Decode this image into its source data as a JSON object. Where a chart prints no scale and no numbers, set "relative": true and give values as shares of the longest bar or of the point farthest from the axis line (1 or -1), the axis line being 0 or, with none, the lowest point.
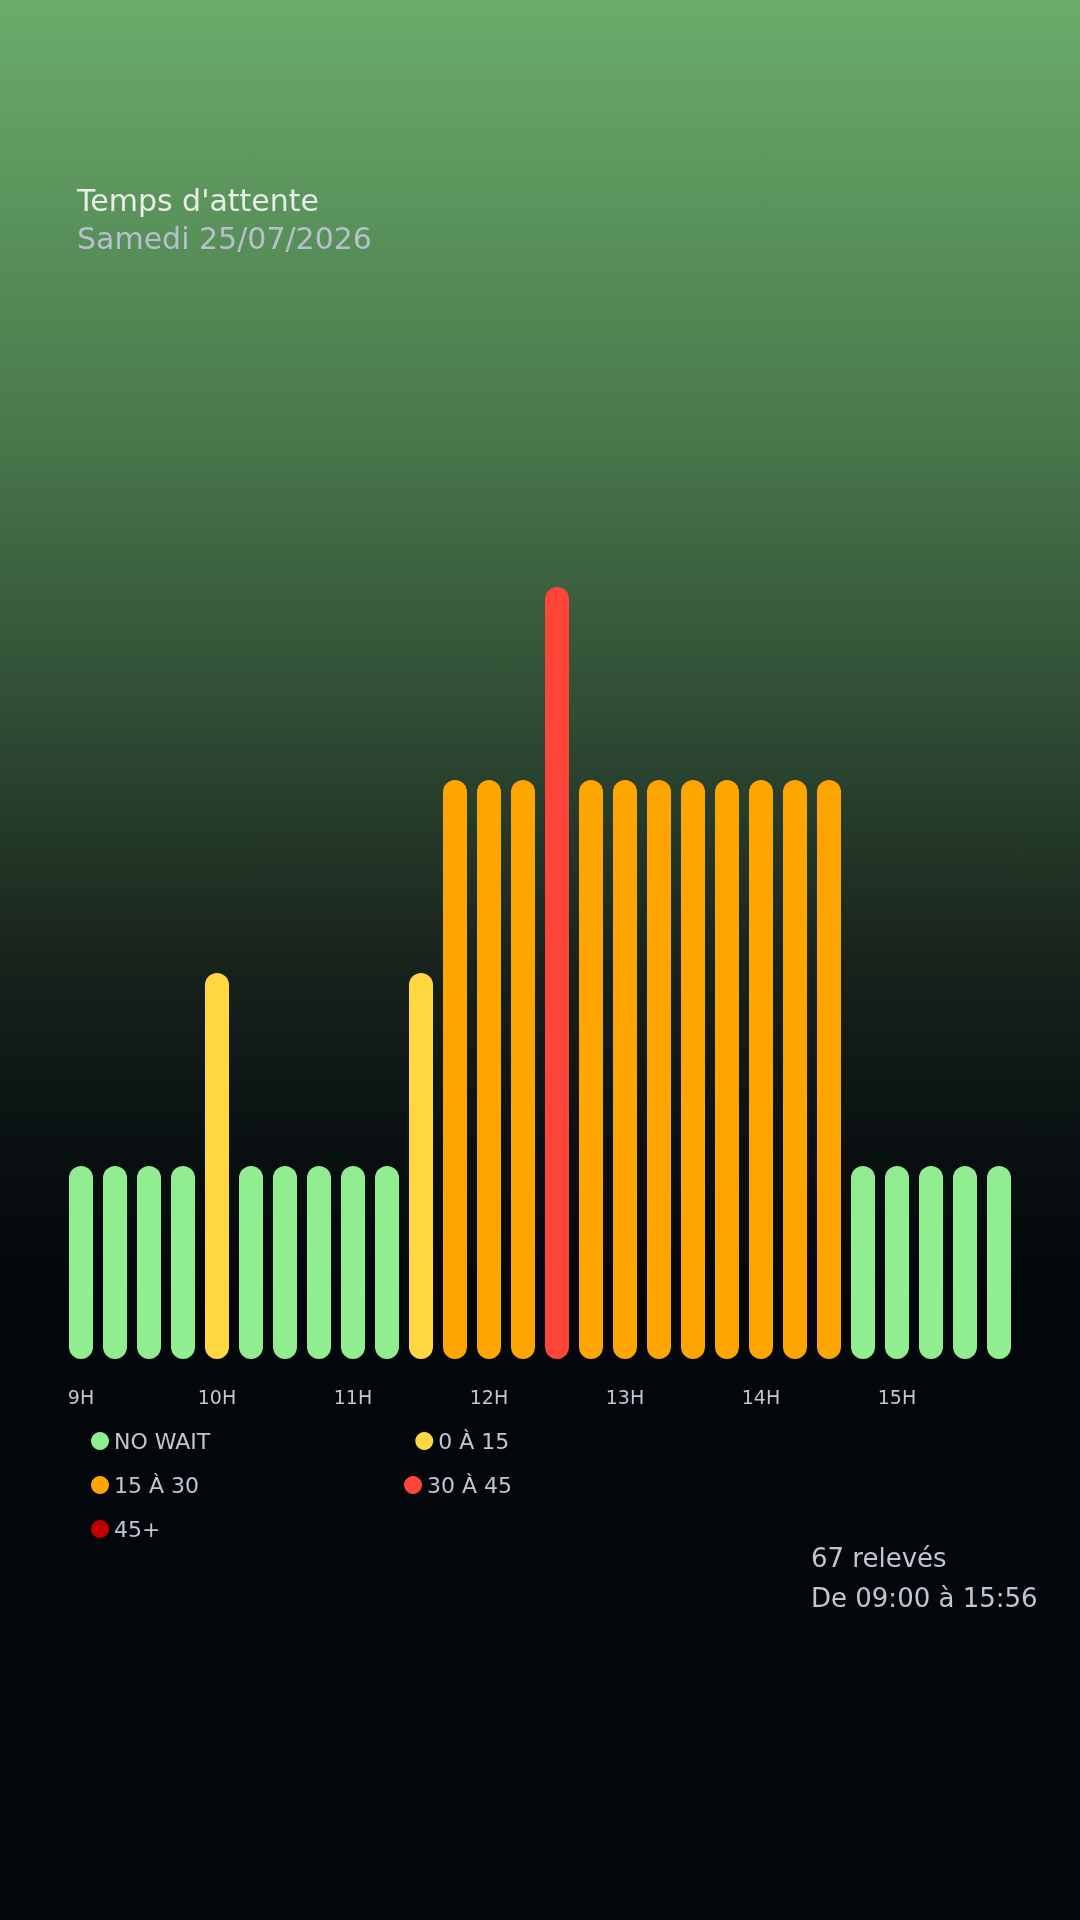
{
  "chart_data": {
    "type": "bar",
    "title": "Temps d'attente",
    "subtitle": "Samedi 25/07/2026",
    "relative": true,
    "stacked": true,
    "legend": "bottom",
    "grid": false,
    "categories": [
      "9H",
      null,
      null,
      null,
      "10H",
      null,
      null,
      null,
      "11H",
      null,
      null,
      null,
      "12H",
      null,
      null,
      null,
      "13H",
      null,
      null,
      null,
      "14H",
      null,
      null,
      null,
      "15H",
      null,
      null,
      null
    ],
    "series": [
      {
        "name": "NO WAIT",
        "color": "#90ee90",
        "values": [
          0.25,
          0.25,
          0.25,
          0.25,
          null,
          0.25,
          0.25,
          0.25,
          0.25,
          0.25,
          null,
          null,
          null,
          null,
          null,
          null,
          null,
          null,
          null,
          null,
          null,
          null,
          null,
          0.25,
          0.25,
          0.25,
          0.25,
          0.25
        ]
      },
      {
        "name": "0 À 15",
        "color": "#ffd740",
        "values": [
          null,
          null,
          null,
          null,
          0.5,
          null,
          null,
          null,
          null,
          null,
          0.5,
          null,
          null,
          null,
          null,
          null,
          null,
          null,
          null,
          null,
          null,
          null,
          null,
          null,
          null,
          null,
          null,
          null
        ]
      },
      {
        "name": "15 À 30",
        "color": "#ffa500",
        "values": [
          null,
          null,
          null,
          null,
          null,
          null,
          null,
          null,
          null,
          null,
          null,
          0.75,
          0.75,
          0.75,
          null,
          0.75,
          0.75,
          0.75,
          0.75,
          0.75,
          0.75,
          0.75,
          0.75,
          null,
          null,
          null,
          null,
          null
        ]
      },
      {
        "name": "30 À 45",
        "color": "#ff4538",
        "values": [
          null,
          null,
          null,
          null,
          null,
          null,
          null,
          null,
          null,
          null,
          null,
          null,
          null,
          null,
          1,
          null,
          null,
          null,
          null,
          null,
          null,
          null,
          null,
          null,
          null,
          null,
          null,
          null
        ]
      },
      {
        "name": "45+",
        "color": "#c00000",
        "values": [
          null,
          null,
          null,
          null,
          null,
          null,
          null,
          null,
          null,
          null,
          null,
          null,
          null,
          null,
          null,
          null,
          null,
          null,
          null,
          null,
          null,
          null,
          null,
          null,
          null,
          null,
          null,
          null
        ]
      }
    ],
    "annotations": [
      "67 relevés",
      "De 09:00 à 15:56"
    ]
  }
}
